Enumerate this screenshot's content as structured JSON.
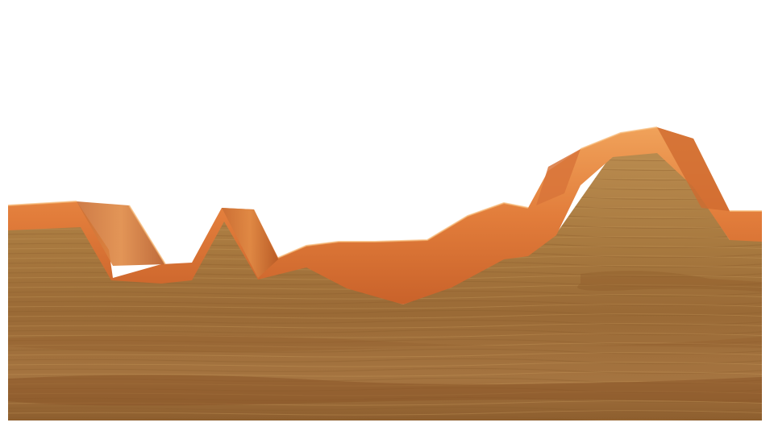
{
  "scene": {
    "background": "#ffffff",
    "colors": {
      "surface_orange": "#e07a3a",
      "surface_highlight": "#f2a45c",
      "surface_shadow": "#b8551f",
      "soil_light": "#b88a4e",
      "soil_mid": "#a06f38",
      "soil_dark": "#7a4e24",
      "soil_band": "#8a5a2c"
    }
  }
}
